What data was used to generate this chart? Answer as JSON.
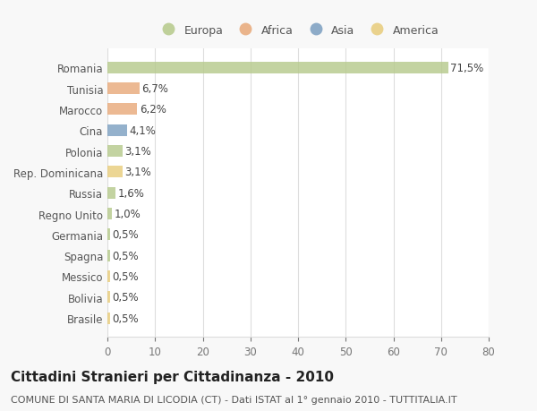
{
  "title": "Cittadini Stranieri per Cittadinanza - 2010",
  "subtitle": "COMUNE DI SANTA MARIA DI LICODIA (CT) - Dati ISTAT al 1° gennaio 2010 - TUTTITALIA.IT",
  "categories": [
    "Romania",
    "Tunisia",
    "Marocco",
    "Cina",
    "Polonia",
    "Rep. Dominicana",
    "Russia",
    "Regno Unito",
    "Germania",
    "Spagna",
    "Messico",
    "Bolivia",
    "Brasile"
  ],
  "values": [
    71.5,
    6.7,
    6.2,
    4.1,
    3.1,
    3.1,
    1.6,
    1.0,
    0.5,
    0.5,
    0.5,
    0.5,
    0.5
  ],
  "labels": [
    "71,5%",
    "6,7%",
    "6,2%",
    "4,1%",
    "3,1%",
    "3,1%",
    "1,6%",
    "1,0%",
    "0,5%",
    "0,5%",
    "0,5%",
    "0,5%",
    "0,5%"
  ],
  "colors": [
    "#b5c98a",
    "#e8a878",
    "#e8a878",
    "#7a9ec0",
    "#b5c98a",
    "#e8cc7a",
    "#b5c98a",
    "#b5c98a",
    "#b5c98a",
    "#b5c98a",
    "#e8cc7a",
    "#e8cc7a",
    "#e8cc7a"
  ],
  "legend": [
    {
      "label": "Europa",
      "color": "#b5c98a"
    },
    {
      "label": "Africa",
      "color": "#e8a878"
    },
    {
      "label": "Asia",
      "color": "#7a9ec0"
    },
    {
      "label": "America",
      "color": "#e8cc7a"
    }
  ],
  "xlim": [
    0,
    80
  ],
  "xticks": [
    0,
    10,
    20,
    30,
    40,
    50,
    60,
    70,
    80
  ],
  "background_color": "#f8f8f8",
  "plot_bg_color": "#ffffff",
  "grid_color": "#dddddd",
  "bar_height": 0.55,
  "label_fontsize": 8.5,
  "tick_fontsize": 8.5,
  "title_fontsize": 11,
  "subtitle_fontsize": 8,
  "legend_fontsize": 9
}
